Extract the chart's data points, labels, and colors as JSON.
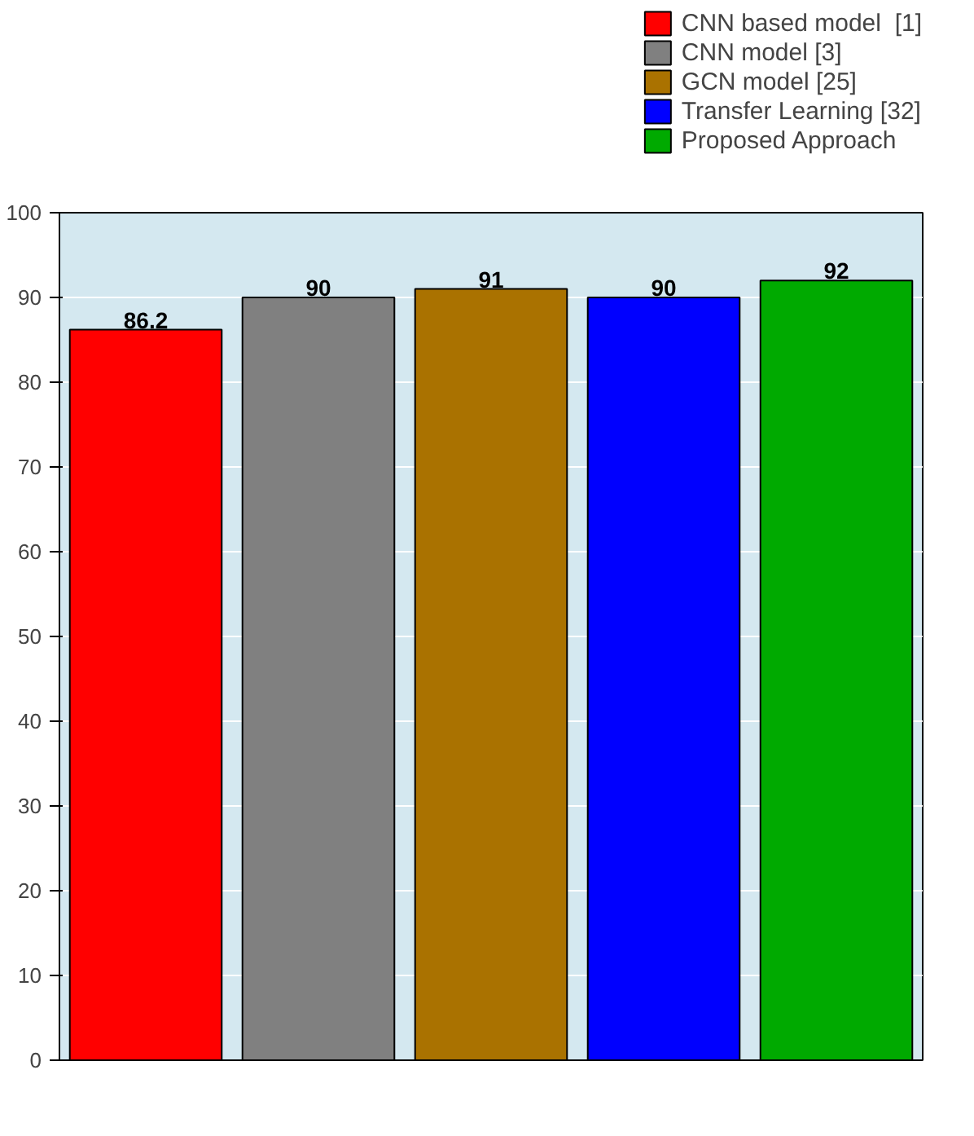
{
  "chart_data": {
    "type": "bar",
    "categories": [
      null,
      null,
      null,
      null,
      null
    ],
    "series": [
      {
        "name": "CNN based model  [1]",
        "color": "#ff0000",
        "values": [
          86.2,
          null,
          null,
          null,
          null
        ]
      },
      {
        "name": "CNN model [3]",
        "color": "#808080",
        "values": [
          null,
          90,
          null,
          null,
          null
        ]
      },
      {
        "name": "GCN model [25]",
        "color": "#aa7200",
        "values": [
          null,
          null,
          91,
          null,
          null
        ]
      },
      {
        "name": "Transfer Learning [32]",
        "color": "#0000ff",
        "values": [
          null,
          null,
          null,
          90,
          null
        ]
      },
      {
        "name": "Proposed Approach",
        "color": "#00aa00",
        "values": [
          null,
          null,
          null,
          null,
          92
        ]
      }
    ],
    "ylim": [
      0,
      100
    ],
    "yticks": [
      0,
      10,
      20,
      30,
      40,
      50,
      60,
      70,
      80,
      90,
      100
    ],
    "grid": "y",
    "legend": "top right",
    "data_labels": true
  }
}
